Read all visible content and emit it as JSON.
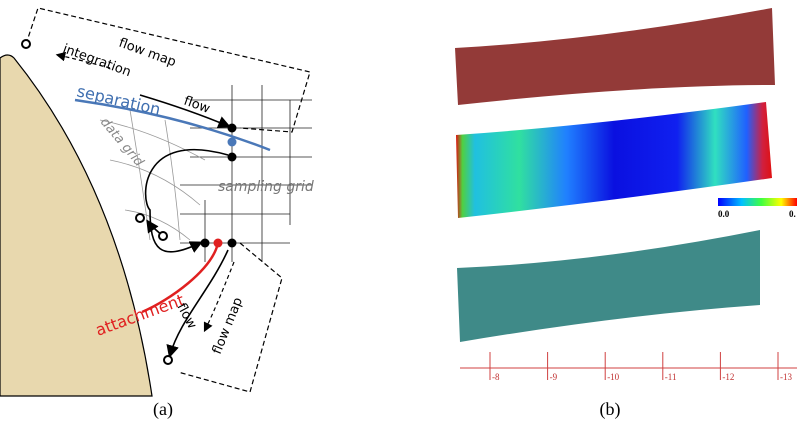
{
  "panel_a": {
    "labels": {
      "flow_map_top": "flow map",
      "integration": "integration",
      "flow_top": "flow",
      "separation": "separation",
      "data_grid": "data grid",
      "sampling_grid": "sampling grid",
      "attachment": "attachment",
      "flow_bottom": "flow",
      "flow_map_bottom": "flow map"
    },
    "caption": "(a)"
  },
  "panel_b": {
    "colorbar": {
      "min_label": "0.0",
      "max_label": "0."
    },
    "ruler": {
      "labels": [
        "-8",
        "-9",
        "-10",
        "-11",
        "-12",
        "-13"
      ]
    },
    "caption": "(b)"
  }
}
